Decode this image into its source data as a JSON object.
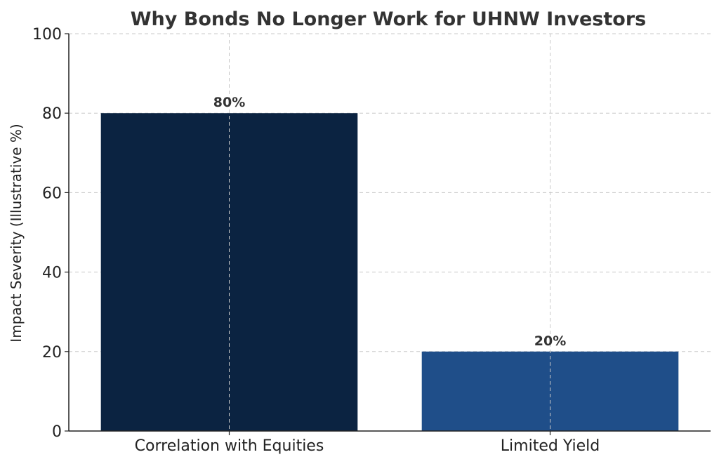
{
  "chart_data": {
    "type": "bar",
    "title": "Why Bonds No Longer Work for UHNW Investors",
    "xlabel": "",
    "ylabel": "Impact Severity (Illustrative %)",
    "categories": [
      "Correlation with Equities",
      "Limited Yield"
    ],
    "values": [
      80,
      20
    ],
    "data_labels": [
      "80%",
      "20%"
    ],
    "ylim": [
      0,
      100
    ],
    "yticks": [
      "0",
      "20",
      "40",
      "60",
      "80",
      "100"
    ],
    "ytick_values": [
      0,
      20,
      40,
      60,
      80,
      100
    ],
    "bar_colors": [
      "#0b2341",
      "#1f4e89"
    ],
    "grid": true,
    "legend": "none"
  }
}
